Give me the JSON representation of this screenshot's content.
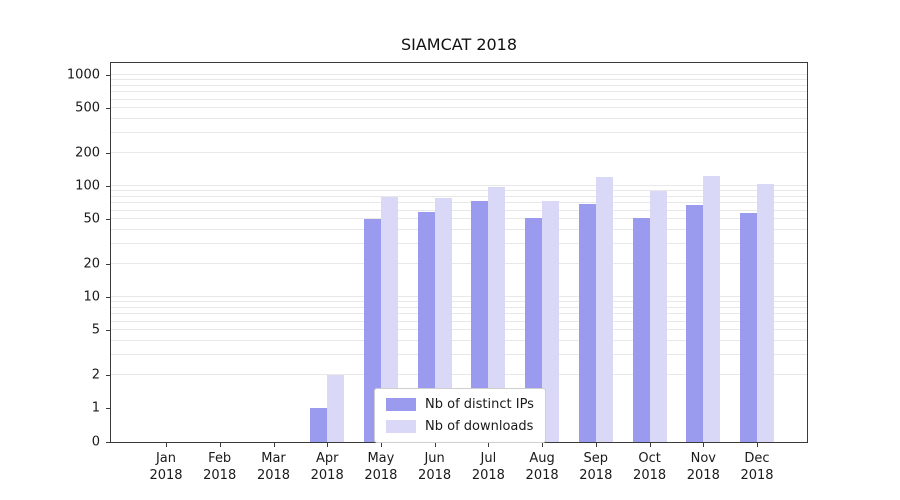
{
  "chart_data": {
    "type": "bar",
    "title": "SIAMCAT 2018",
    "xlabel": "",
    "ylabel": "",
    "scale": "symlog",
    "ylim": [
      0,
      1250
    ],
    "yticks": [
      0,
      1,
      2,
      5,
      10,
      20,
      50,
      100,
      200,
      500,
      1000
    ],
    "grid": "minor-horizontal",
    "legend_position": "lower-center-inside",
    "categories": [
      "Jan 2018",
      "Feb 2018",
      "Mar 2018",
      "Apr 2018",
      "May 2018",
      "Jun 2018",
      "Jul 2018",
      "Aug 2018",
      "Sep 2018",
      "Oct 2018",
      "Nov 2018",
      "Dec 2018"
    ],
    "series": [
      {
        "name": "Nb of distinct IPs",
        "color": "#9a9aee",
        "values": [
          0,
          0,
          0,
          1,
          51,
          58,
          73,
          52,
          69,
          52,
          68,
          57
        ]
      },
      {
        "name": "Nb of downloads",
        "color": "#d9d9f7",
        "values": [
          0,
          0,
          0,
          2,
          79,
          78,
          98,
          74,
          120,
          90,
          122,
          104
        ]
      }
    ]
  },
  "colors": {
    "gridline": "#e8e8e8",
    "axis": "#3a3a3a",
    "background": "#ffffff"
  }
}
